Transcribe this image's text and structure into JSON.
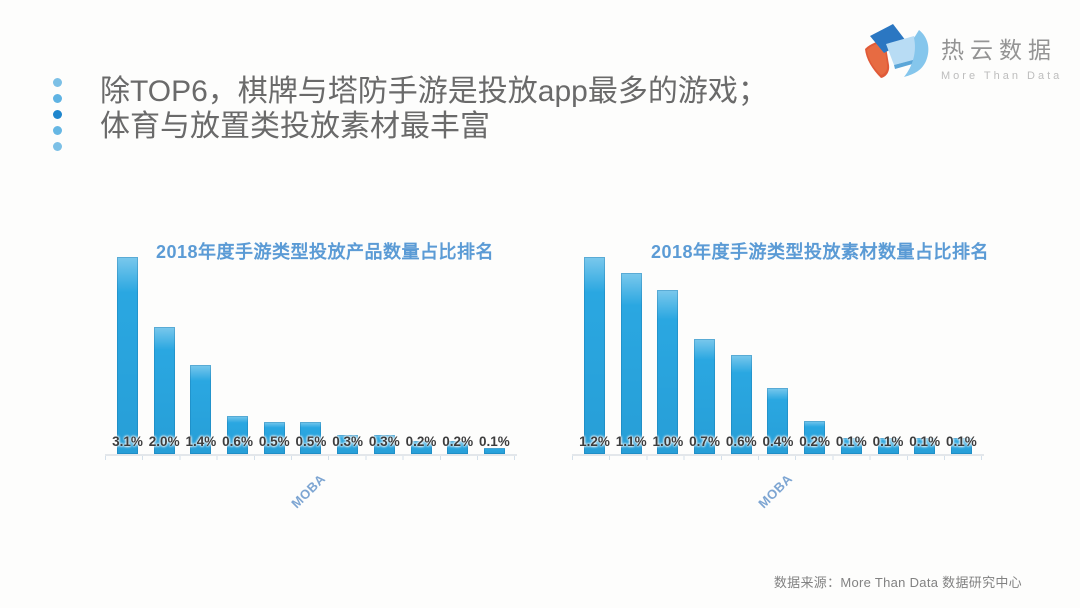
{
  "slide": {
    "title_lines": [
      "除TOP6，棋牌与塔防手游是投放app最多的游戏；",
      "体育与放置类投放素材最丰富"
    ],
    "source": "数据来源：More Than Data 数据研究中心"
  },
  "logo": {
    "brand": "热云数据",
    "tagline": "More Than Data"
  },
  "colors": {
    "bar": "#2aa7e1",
    "chart_title": "#5b9bd5",
    "category_label": "#7da5d2",
    "headline_text": "#6a6a6a",
    "accent_dots": [
      "#7cc0e6",
      "#5fb3e3",
      "#1f86cd",
      "#66b7e4",
      "#7cc0e6"
    ],
    "logo_dark_blue": "#2b77c2",
    "logo_light_blue": "#b8dcf4",
    "logo_swoosh_blue": "#85c6ec",
    "logo_orange": "#e05a38"
  },
  "chart_data": [
    {
      "type": "bar",
      "title": "2018年度手游类型投放产品数量占比排名",
      "categories": [
        "",
        "",
        "",
        "",
        "",
        "MOBA",
        "",
        "",
        "",
        "",
        ""
      ],
      "values": [
        3.1,
        2.0,
        1.4,
        0.6,
        0.5,
        0.5,
        0.3,
        0.3,
        0.2,
        0.2,
        0.1
      ],
      "data_labels": [
        "3.1%",
        "2.0%",
        "1.4%",
        "0.6%",
        "0.5%",
        "0.5%",
        "0.3%",
        "0.3%",
        "0.2%",
        "0.2%",
        "0.1%"
      ],
      "unit": "%",
      "ylim": [
        0,
        3.1
      ],
      "grid": false,
      "legend": false,
      "data_label_position": "inside-base",
      "category_label_rotation_deg": 45
    },
    {
      "type": "bar",
      "title": "2018年度手游类型投放素材数量占比排名",
      "categories": [
        "",
        "",
        "",
        "",
        "",
        "MOBA",
        "",
        "",
        "",
        "",
        ""
      ],
      "values": [
        1.2,
        1.1,
        1.0,
        0.7,
        0.6,
        0.4,
        0.2,
        0.1,
        0.1,
        0.1,
        0.1
      ],
      "data_labels": [
        "1.2%",
        "1.1%",
        "1.0%",
        "0.7%",
        "0.6%",
        "0.4%",
        "0.2%",
        "0.1%",
        "0.1%",
        "0.1%",
        "0.1%"
      ],
      "unit": "%",
      "ylim": [
        0,
        1.2
      ],
      "grid": false,
      "legend": false,
      "data_label_position": "inside-base",
      "category_label_rotation_deg": 45
    }
  ]
}
